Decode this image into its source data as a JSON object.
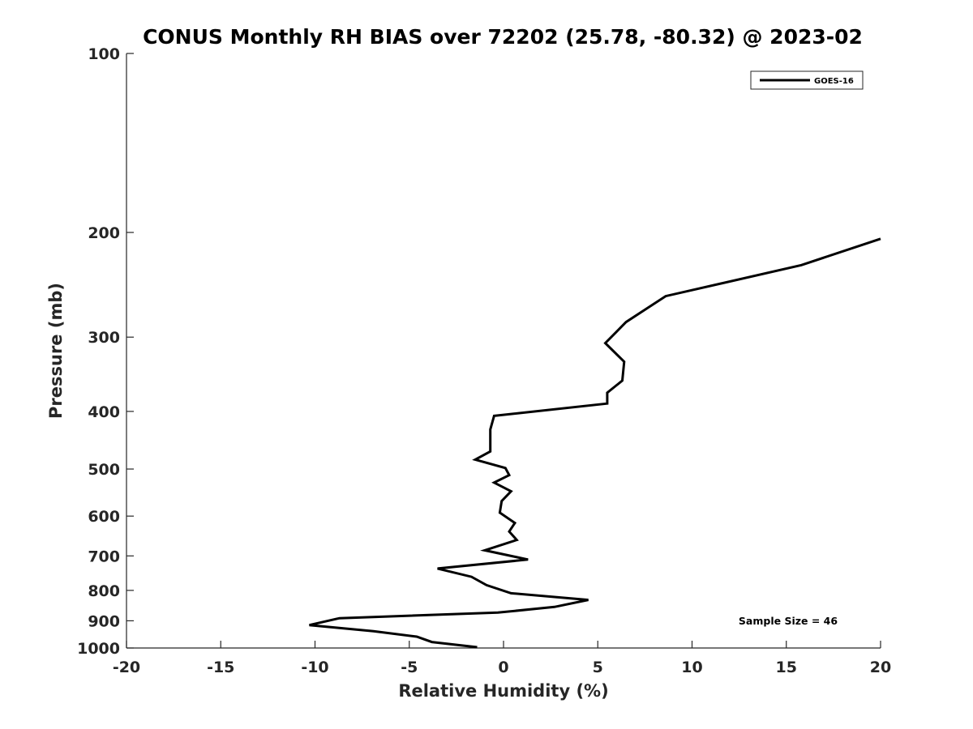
{
  "chart_data": {
    "type": "line",
    "title": "CONUS Monthly RH BIAS over 72202 (25.78, -80.32) @ 2023-02",
    "xlabel": "Relative Humidity (%)",
    "ylabel": "Pressure (mb)",
    "xlim": [
      -20,
      20
    ],
    "ylim": [
      100,
      1000
    ],
    "y_scale": "log",
    "y_reversed": true,
    "grid": false,
    "x_ticks": [
      -20,
      -15,
      -10,
      -5,
      0,
      5,
      10,
      15,
      20
    ],
    "x_tick_labels": [
      "-20",
      "-15",
      "-10",
      "-5",
      "0",
      "5",
      "10",
      "15",
      "20"
    ],
    "y_ticks": [
      100,
      200,
      300,
      400,
      500,
      600,
      700,
      800,
      900,
      1000
    ],
    "y_tick_labels": [
      "100",
      "200",
      "300",
      "400",
      "500",
      "600",
      "700",
      "800",
      "900",
      "1000"
    ],
    "legend_position": "top-right",
    "series": [
      {
        "name": "GOES-16",
        "color": "#000000",
        "x": [
          20.0,
          15.8,
          8.6,
          6.5,
          5.4,
          6.4,
          6.3,
          5.5,
          5.5,
          -0.5,
          -0.7,
          -0.7,
          -0.7,
          -1.5,
          0.1,
          0.3,
          -0.5,
          0.4,
          -0.1,
          -0.2,
          0.6,
          0.3,
          0.7,
          -1.0,
          1.3,
          -3.5,
          -1.7,
          -0.9,
          0.4,
          4.5,
          2.7,
          -0.3,
          -8.7,
          -10.3,
          -6.9,
          -4.6,
          -3.8,
          -1.4
        ],
        "y": [
          205,
          227,
          256,
          283,
          307,
          330,
          355,
          372,
          388,
          407,
          429,
          449,
          467,
          482,
          498,
          512,
          527,
          545,
          566,
          592,
          616,
          637,
          658,
          685,
          710,
          735,
          759,
          784,
          809,
          830,
          853,
          872,
          891,
          915,
          937,
          957,
          977,
          997
        ]
      }
    ],
    "annotations": [
      "Sample Size = 46"
    ]
  }
}
